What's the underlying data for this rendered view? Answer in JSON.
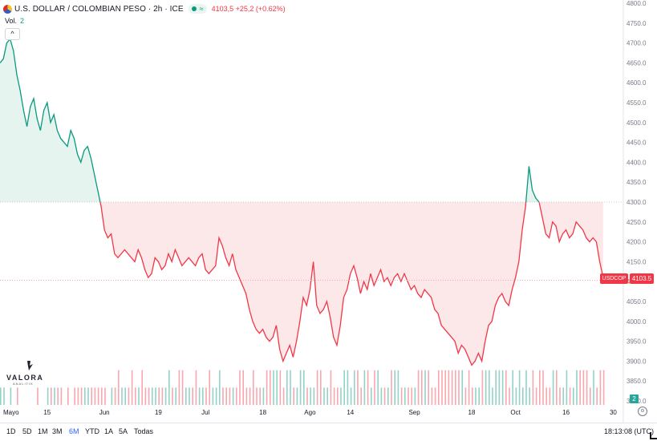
{
  "header": {
    "symbol_title": "U.S. DOLLAR / COLOMBIAN PESO · 2h · ICE",
    "market_status_icon": "approx-icon",
    "market_status_glyph": "≈",
    "price_change": "4103,5 +25,2 (+0.62%)",
    "vol_label": "Vol.",
    "vol_value": "2",
    "collapse_glyph": "^"
  },
  "logo": {
    "name": "VALORA",
    "sub": "ANALITIK"
  },
  "price_tags": {
    "symbol": "USDCOP",
    "price": "4103.5",
    "volume": "2"
  },
  "bottom_bar": {
    "ranges": [
      "1D",
      "5D",
      "1M",
      "3M",
      "6M",
      "YTD",
      "1A",
      "5A",
      "Todas"
    ],
    "active_range": "6M",
    "clock": "18:13:08 (UTC)"
  },
  "colors": {
    "up": "#089981",
    "down": "#f23645",
    "up_fill": "#e6f4ef",
    "down_fill": "#fde8e9",
    "grid_text": "#787b86",
    "vol_up": "#92d2c8",
    "vol_down": "#f7a7ad"
  },
  "chart_data": {
    "type": "area",
    "title": "U.S. DOLLAR / COLOMBIAN PESO · 2h · ICE",
    "baseline": 4300,
    "last_price": 4103.5,
    "ylim": [
      3800,
      4800
    ],
    "yticks": [
      4800,
      4750,
      4700,
      4650,
      4600,
      4550,
      4500,
      4450,
      4400,
      4350,
      4300,
      4250,
      4200,
      4150,
      4100,
      4050,
      4000,
      3950,
      3900,
      3850,
      3800
    ],
    "ytick_labels": [
      "4800.0",
      "4750.0",
      "4700.0",
      "4650.0",
      "4600.0",
      "4550.0",
      "4500.0",
      "4450.0",
      "4400.0",
      "4350.0",
      "4300.0",
      "4250.0",
      "4200.0",
      "4150.0",
      "4100.0",
      "4050.0",
      "4000.0",
      "3950.0",
      "3900.0",
      "3850.0",
      "3800.0"
    ],
    "xrange": [
      0,
      185
    ],
    "xticks": [
      {
        "label": "Mayo",
        "x": 0
      },
      {
        "label": "15",
        "x": 14
      },
      {
        "label": "Jun",
        "x": 31
      },
      {
        "label": "19",
        "x": 47
      },
      {
        "label": "Jul",
        "x": 61
      },
      {
        "label": "18",
        "x": 78
      },
      {
        "label": "Ago",
        "x": 92
      },
      {
        "label": "14",
        "x": 104
      },
      {
        "label": "Sep",
        "x": 123
      },
      {
        "label": "18",
        "x": 140
      },
      {
        "label": "Oct",
        "x": 153
      },
      {
        "label": "16",
        "x": 168
      },
      {
        "label": "30",
        "x": 182
      }
    ],
    "series": [
      {
        "x": [
          0,
          1,
          2,
          3,
          4,
          5,
          6,
          7,
          8,
          9,
          10,
          11,
          12,
          13,
          14,
          15,
          16,
          17,
          18,
          19,
          20,
          21,
          22,
          23,
          24,
          25,
          26,
          27,
          28,
          29,
          30,
          31,
          32,
          33,
          34,
          35,
          36,
          37,
          38,
          39,
          40,
          41,
          42,
          43,
          44,
          45,
          46,
          47,
          48,
          49,
          50,
          51,
          52,
          53,
          54,
          55,
          56,
          57,
          58,
          59,
          60,
          61,
          62,
          63,
          64,
          65,
          66,
          67,
          68,
          69,
          70,
          71,
          72,
          73,
          74,
          75,
          76,
          77,
          78,
          79,
          80,
          81,
          82,
          83,
          84,
          85,
          86,
          87,
          88,
          89,
          90,
          91,
          92,
          93,
          94,
          95,
          96,
          97,
          98,
          99,
          100,
          101,
          102,
          103,
          104,
          105,
          106,
          107,
          108,
          109,
          110,
          111,
          112,
          113,
          114,
          115,
          116,
          117,
          118,
          119,
          120,
          121,
          122,
          123,
          124,
          125,
          126,
          127,
          128,
          129,
          130,
          131,
          132,
          133,
          134,
          135,
          136,
          137,
          138,
          139,
          140,
          141,
          142,
          143,
          144,
          145,
          146,
          147,
          148,
          149,
          150,
          151,
          152,
          153,
          154,
          155,
          156,
          157,
          158,
          159,
          160,
          161,
          162,
          163,
          164,
          165,
          166,
          167,
          168,
          169,
          170,
          171,
          172,
          173,
          174,
          175,
          176,
          177,
          178,
          179
        ],
        "values": [
          4650,
          4660,
          4700,
          4710,
          4680,
          4620,
          4580,
          4530,
          4490,
          4540,
          4560,
          4510,
          4480,
          4530,
          4550,
          4500,
          4520,
          4480,
          4460,
          4450,
          4440,
          4480,
          4460,
          4420,
          4400,
          4430,
          4440,
          4410,
          4370,
          4330,
          4290,
          4230,
          4210,
          4220,
          4170,
          4160,
          4170,
          4180,
          4170,
          4160,
          4150,
          4180,
          4160,
          4130,
          4110,
          4120,
          4160,
          4150,
          4130,
          4140,
          4170,
          4150,
          4180,
          4160,
          4140,
          4150,
          4160,
          4150,
          4140,
          4160,
          4170,
          4130,
          4120,
          4130,
          4140,
          4210,
          4190,
          4160,
          4140,
          4170,
          4130,
          4110,
          4090,
          4070,
          4030,
          4000,
          3980,
          3970,
          3980,
          3960,
          3950,
          3960,
          3990,
          3930,
          3900,
          3920,
          3940,
          3910,
          3950,
          4000,
          4060,
          4040,
          4080,
          4150,
          4040,
          4020,
          4030,
          4050,
          4010,
          3960,
          3940,
          3990,
          4060,
          4080,
          4120,
          4140,
          4110,
          4070,
          4100,
          4080,
          4120,
          4090,
          4110,
          4130,
          4100,
          4110,
          4090,
          4110,
          4120,
          4100,
          4120,
          4100,
          4080,
          4090,
          4070,
          4060,
          4080,
          4070,
          4060,
          4030,
          4020,
          3990,
          3980,
          3970,
          3960,
          3950,
          3920,
          3940,
          3930,
          3910,
          3890,
          3900,
          3920,
          3900,
          3950,
          3990,
          4000,
          4040,
          4060,
          4070,
          4050,
          4040,
          4080,
          4110,
          4150,
          4230,
          4290,
          4390,
          4330,
          4310,
          4300,
          4260,
          4220,
          4210,
          4250,
          4240,
          4200,
          4220,
          4230,
          4210,
          4220,
          4250,
          4240,
          4230,
          4210,
          4200,
          4210,
          4200,
          4150,
          4110
        ],
        "volumes": [
          1,
          1,
          0,
          1,
          0,
          1,
          0,
          0,
          0,
          0,
          0,
          1,
          0,
          0,
          1,
          1,
          1,
          1,
          1,
          0,
          1,
          0,
          1,
          1,
          1,
          1,
          1,
          1,
          1,
          1,
          1,
          1,
          0,
          1,
          1,
          2,
          1,
          1,
          1,
          2,
          1,
          1,
          2,
          1,
          1,
          1,
          1,
          1,
          1,
          1,
          2,
          1,
          1,
          2,
          2,
          1,
          1,
          1,
          2,
          1,
          1,
          1,
          2,
          1,
          1,
          2,
          1,
          1,
          1,
          1,
          1,
          2,
          2,
          1,
          1,
          2,
          1,
          1,
          1,
          2,
          2,
          2,
          2,
          2,
          1,
          2,
          2,
          1,
          1,
          2,
          2,
          1,
          1,
          1,
          2,
          2,
          1,
          1,
          2,
          1,
          1,
          1,
          2,
          2,
          1,
          2,
          2,
          1,
          2,
          2,
          1,
          2,
          2,
          1,
          1,
          1,
          2,
          2,
          2,
          1,
          1,
          1,
          1,
          1,
          2,
          2,
          2,
          2,
          1,
          1,
          2,
          2,
          2,
          2,
          2,
          2,
          2,
          2,
          1,
          2,
          1,
          1,
          1,
          2,
          2,
          2,
          1,
          2,
          2,
          2,
          2,
          1,
          2,
          1,
          2,
          1,
          2,
          1,
          2,
          1,
          2,
          2,
          1,
          1,
          2,
          2,
          1,
          1,
          2,
          1,
          1,
          2,
          2,
          2,
          2,
          1,
          2,
          1,
          2,
          2
        ]
      }
    ],
    "volume_max": 6
  }
}
